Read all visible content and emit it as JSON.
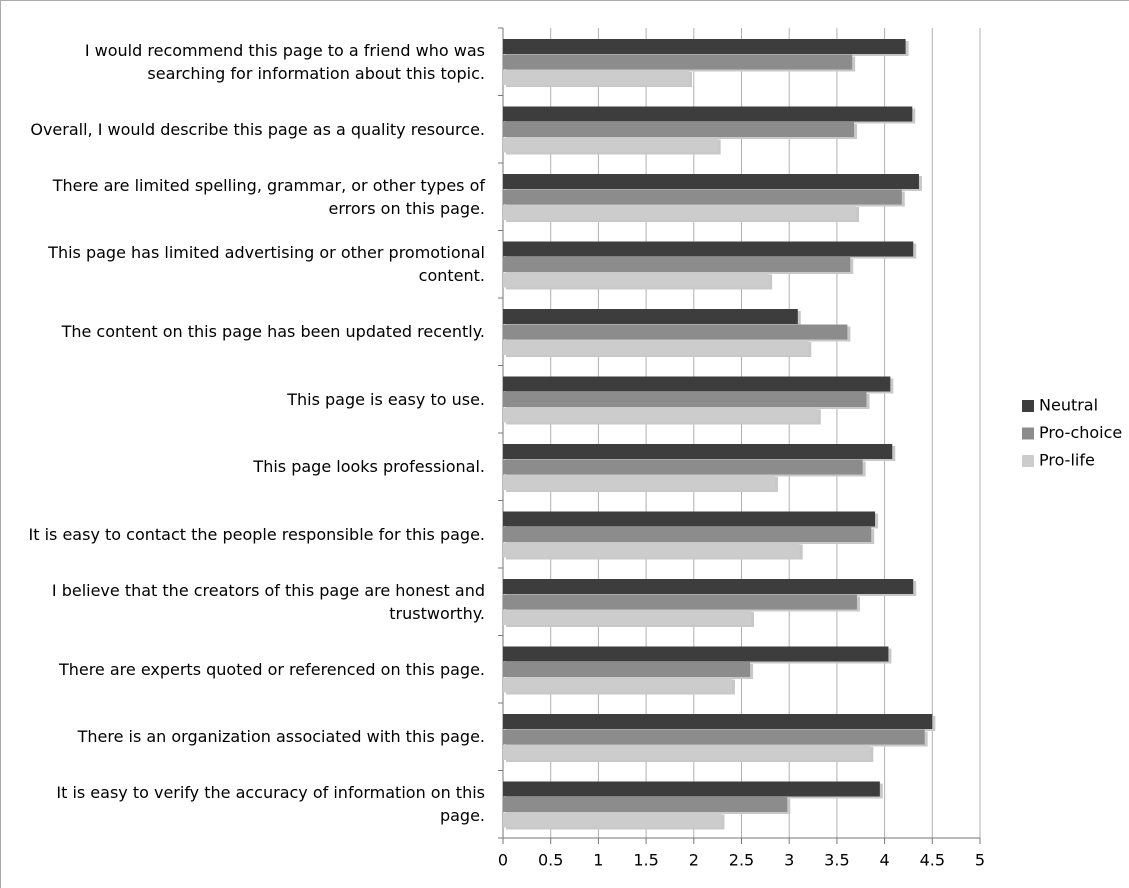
{
  "chart_data": {
    "type": "bar",
    "orientation": "horizontal",
    "categories": [
      "I would recommend this page to a friend who was searching for information about this topic.",
      "Overall, I would describe this page as a quality resource.",
      "There are limited spelling, grammar, or other types of errors on this page.",
      "This page has limited advertising or other promotional content.",
      "The content on this page has been updated recently.",
      "This page is easy to use.",
      "This page looks professional.",
      "It is easy to contact the people responsible for this page.",
      "I believe that the creators of this page are honest and trustworthy.",
      "There are experts quoted or referenced on this page.",
      "There is an organization associated with this page.",
      "It is easy to verify the accuracy of information on this page."
    ],
    "series": [
      {
        "name": "Neutral",
        "color": "#3d3d3d",
        "values": [
          4.22,
          4.29,
          4.36,
          4.3,
          3.09,
          4.06,
          4.08,
          3.9,
          4.3,
          4.04,
          4.5,
          3.95
        ]
      },
      {
        "name": "Pro-choice",
        "color": "#8c8c8c",
        "values": [
          3.66,
          3.68,
          4.18,
          3.64,
          3.61,
          3.81,
          3.77,
          3.86,
          3.71,
          2.59,
          4.42,
          2.98
        ]
      },
      {
        "name": "Pro-life",
        "color": "#cccccc",
        "values": [
          1.95,
          2.25,
          3.7,
          2.79,
          3.2,
          3.3,
          2.85,
          3.11,
          2.6,
          2.4,
          3.85,
          2.29
        ]
      }
    ],
    "xlim": [
      0,
      5
    ],
    "xticks": [
      0,
      0.5,
      1,
      1.5,
      2,
      2.5,
      3,
      3.5,
      4,
      4.5,
      5
    ],
    "grid": true,
    "legend": "right"
  }
}
